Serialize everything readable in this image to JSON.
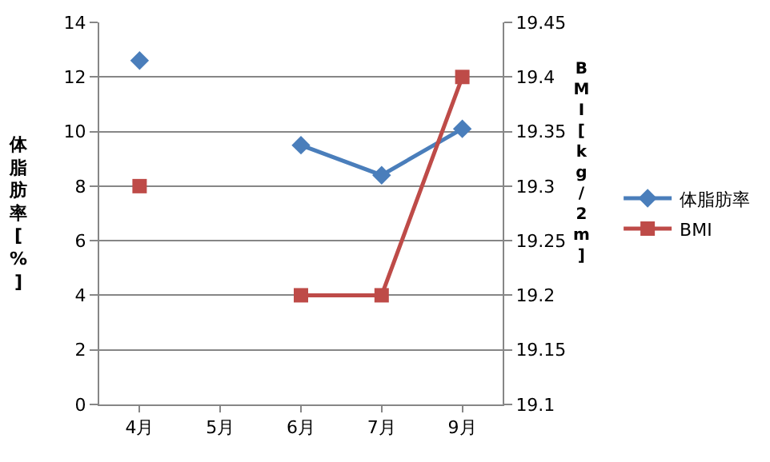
{
  "chart_data": {
    "type": "line",
    "categories": [
      "4月",
      "5月",
      "6月",
      "7月",
      "9月"
    ],
    "ylabel": "体脂肪率[%]",
    "y2label": "BMI[kg/2m]",
    "series": [
      {
        "name": "体脂肪率",
        "color": "#4a7ebb",
        "marker": "diamond",
        "values": [
          12.6,
          null,
          9.5,
          8.4,
          10.1
        ]
      },
      {
        "name": "BMI",
        "color": "#be4b48",
        "marker": "square",
        "axis": "y2",
        "values": [
          19.3,
          null,
          19.2,
          19.2,
          19.4
        ]
      }
    ],
    "ylim": [
      0,
      14
    ],
    "yticks": [
      0,
      2,
      4,
      6,
      8,
      10,
      12,
      14
    ],
    "y2lim": [
      19.1,
      19.45
    ],
    "y2ticks": [
      19.1,
      19.15,
      19.2,
      19.25,
      19.3,
      19.35,
      19.4,
      19.45
    ],
    "grid": "y",
    "legend": "right",
    "line_style": "solid"
  }
}
